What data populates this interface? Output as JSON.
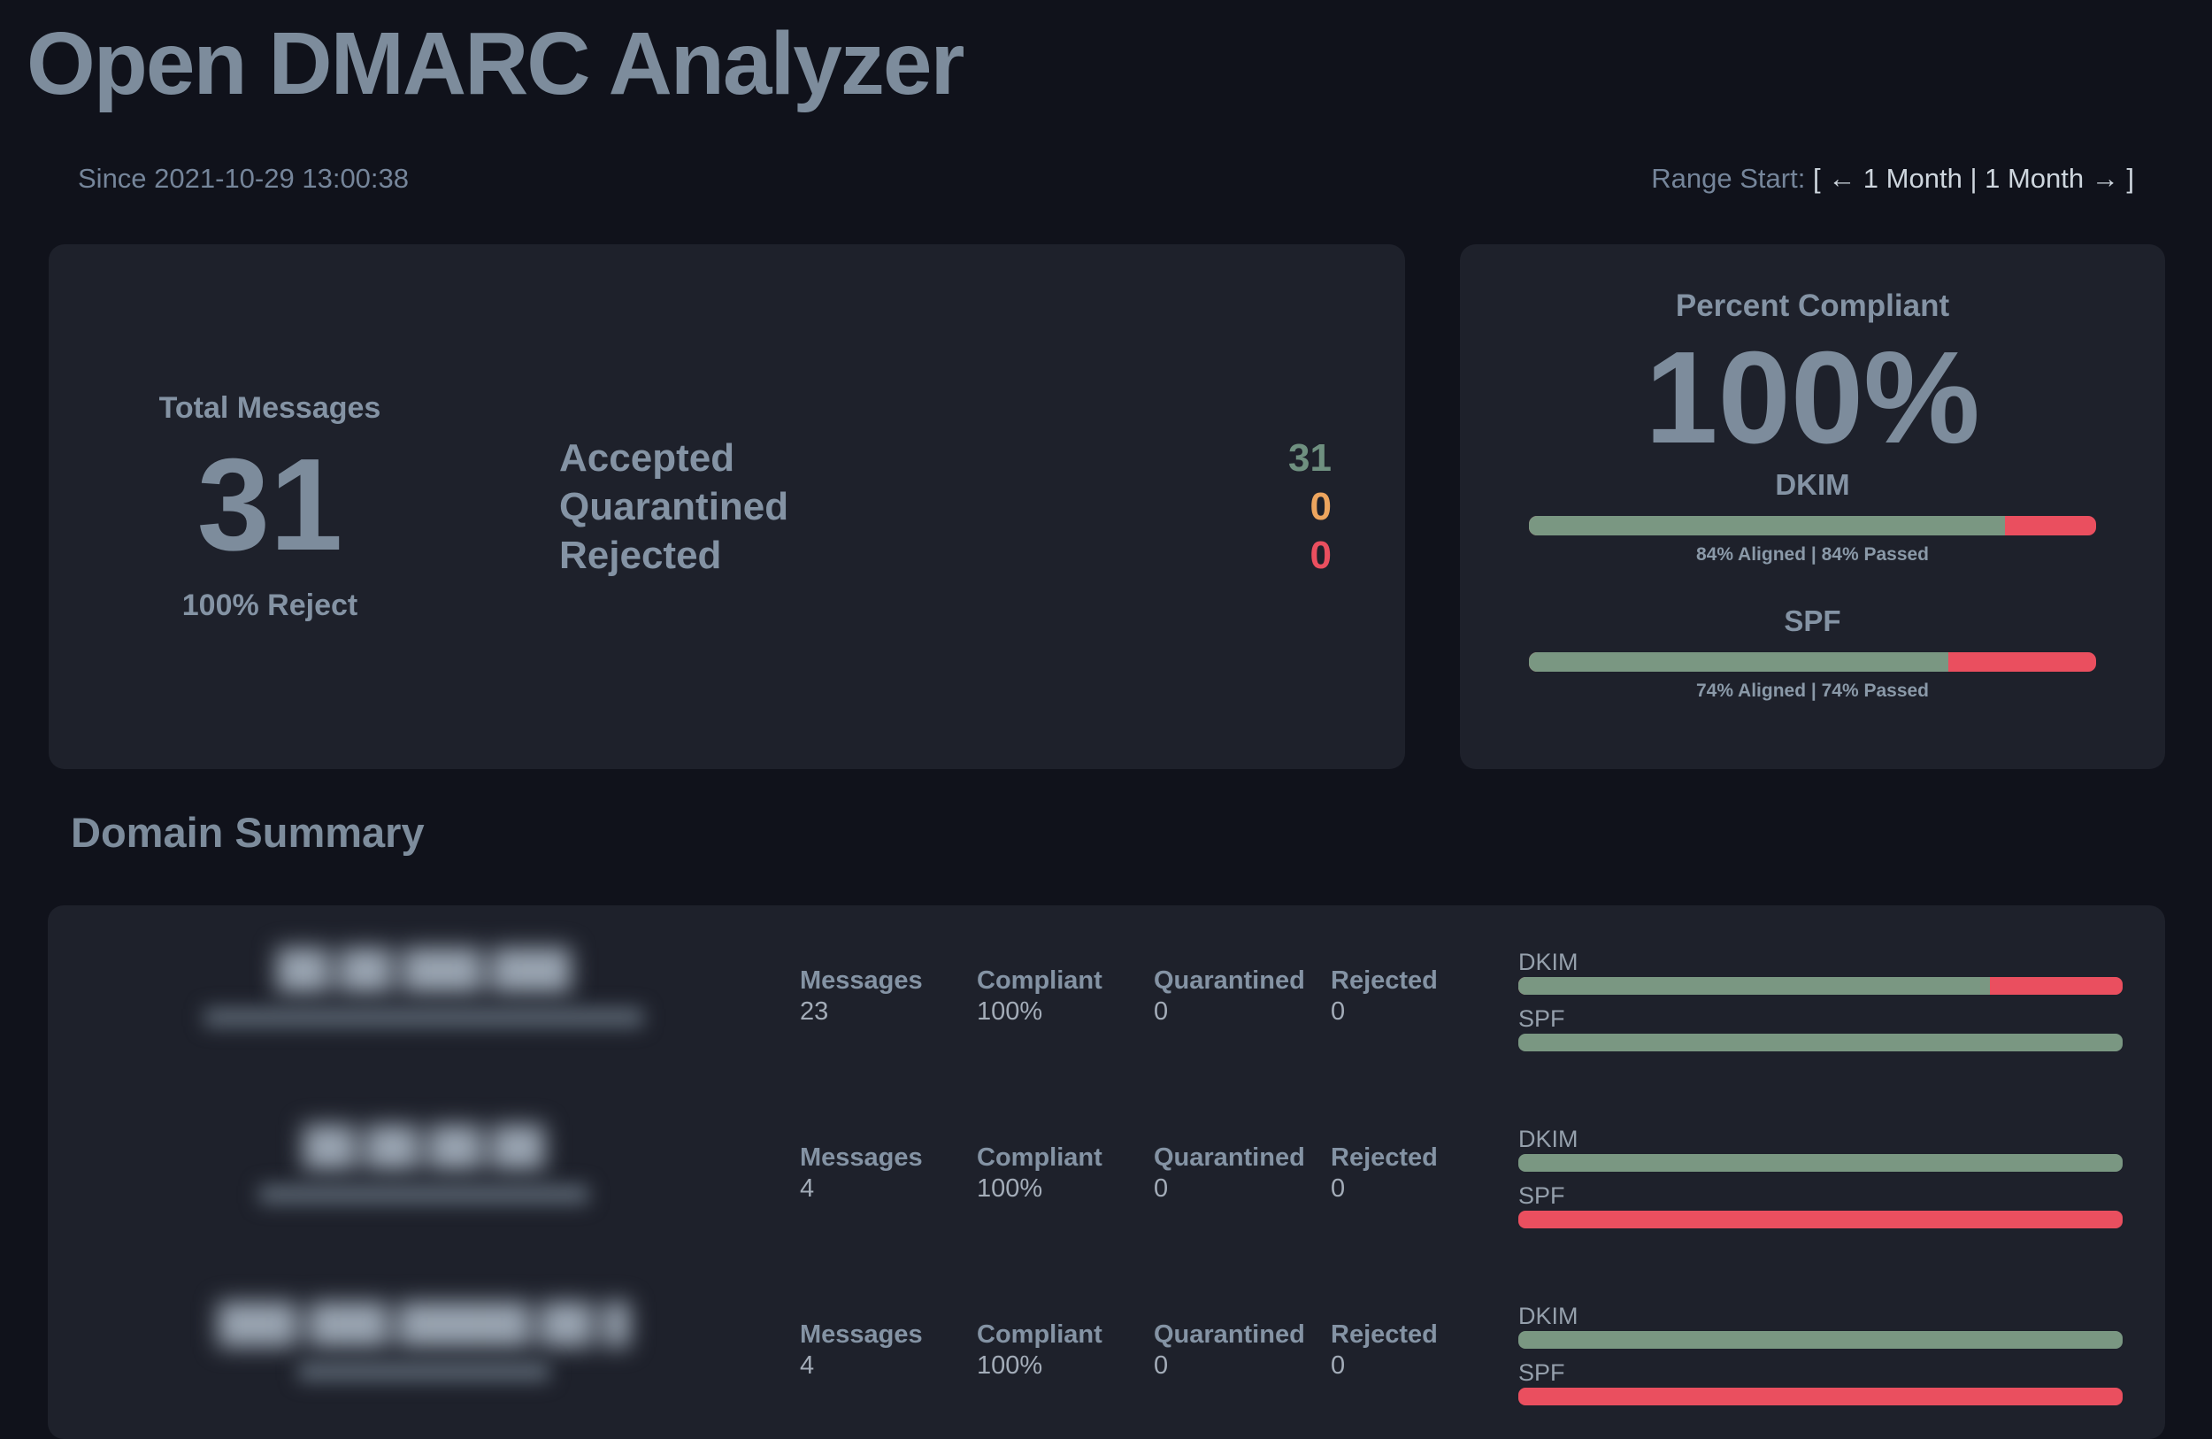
{
  "header": {
    "title": "Open DMARC Analyzer",
    "since": "Since 2021-10-29 13:00:38",
    "range": {
      "label": "Range Start:",
      "open_bracket": "[",
      "prev_label": "← 1 Month",
      "separator": "|",
      "next_label": "1 Month →",
      "close_bracket": "]"
    }
  },
  "totals": {
    "label": "Total Messages",
    "value": "31",
    "reject_label": "100% Reject",
    "dispositions": [
      {
        "label": "Accepted",
        "value": "31",
        "color": "#6f9080"
      },
      {
        "label": "Quarantined",
        "value": "0",
        "color": "#eda55e"
      },
      {
        "label": "Rejected",
        "value": "0",
        "color": "#ea4f5f"
      }
    ]
  },
  "compliance": {
    "title": "Percent Compliant",
    "percent": "100%",
    "bars": [
      {
        "label": "DKIM",
        "pct": 84,
        "caption": "84% Aligned | 84% Passed"
      },
      {
        "label": "SPF",
        "pct": 74,
        "caption": "74% Aligned | 74% Passed"
      }
    ]
  },
  "domain_summary": {
    "heading": "Domain Summary",
    "rows": [
      {
        "domain_redacted": "██.██ ███.███",
        "subtext_redacted": "▆▆▆▆▆▆▆▆▆▆▆▆▆▆▆▆▆▆▆▆▆▆▆▆▆▆▆▆",
        "messages_label": "Messages",
        "messages": "23",
        "compliant_label": "Compliant",
        "compliant": "100%",
        "quarantined_label": "Quarantined",
        "quarantined": "0",
        "rejected_label": "Rejected",
        "rejected": "0",
        "dkim_label": "DKIM",
        "dkim_pct": 78,
        "spf_label": "SPF",
        "spf_pct": 100
      },
      {
        "domain_redacted": "██.██.██.██",
        "subtext_redacted": "▆▆▆▆▆▆▆▆▆▆▆▆▆▆▆▆▆▆▆▆▆",
        "messages_label": "Messages",
        "messages": "4",
        "compliant_label": "Compliant",
        "compliant": "100%",
        "quarantined_label": "Quarantined",
        "quarantined": "0",
        "rejected_label": "Rejected",
        "rejected": "0",
        "dkim_label": "DKIM",
        "dkim_pct": 100,
        "spf_label": "SPF",
        "spf_pct": 0
      },
      {
        "domain_redacted": "███-███.█████.██ █",
        "subtext_redacted": "▆▆▆▆▆▆▆▆▆▆▆▆▆▆▆▆",
        "messages_label": "Messages",
        "messages": "4",
        "compliant_label": "Compliant",
        "compliant": "100%",
        "quarantined_label": "Quarantined",
        "quarantined": "0",
        "rejected_label": "Rejected",
        "rejected": "0",
        "dkim_label": "DKIM",
        "dkim_pct": 100,
        "spf_label": "SPF",
        "spf_pct": 0
      }
    ]
  },
  "colors": {
    "bg": "#10121b",
    "card": "#1e212b",
    "heading": "#7d8c9c",
    "label": "#8493a4",
    "value": "#a3acb8",
    "dim": "#75859a",
    "bright": "#ced6de",
    "caption": "#8a99a8",
    "bar-label": "#95a0ac",
    "green": "#7a9782",
    "red": "#ea4f5f",
    "orange": "#eda55e",
    "green-text": "#6f9080"
  }
}
